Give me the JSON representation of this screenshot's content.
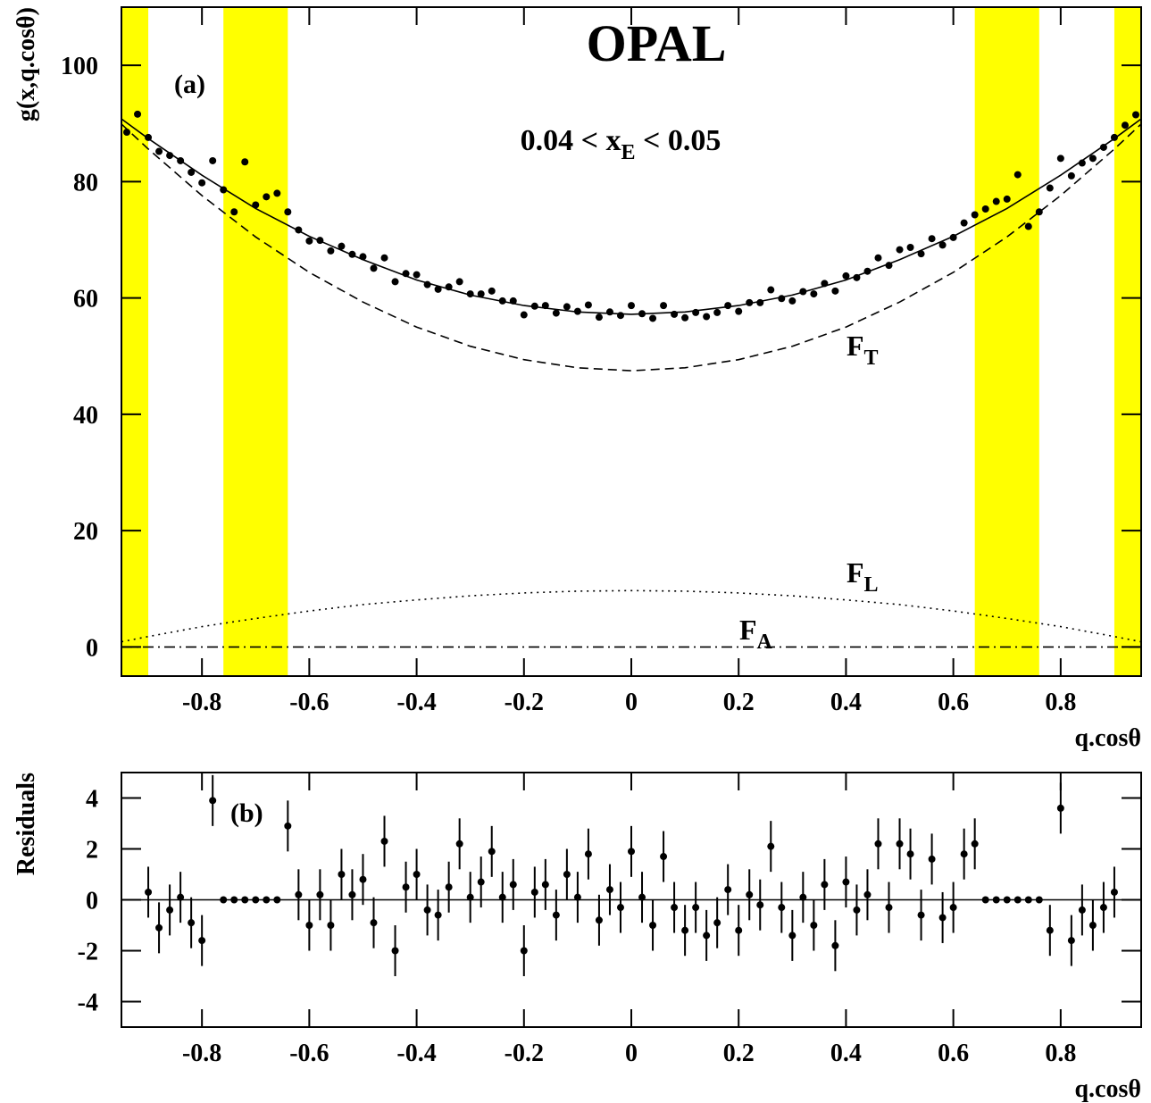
{
  "chart_data": [
    {
      "type": "scatter",
      "title": "OPAL",
      "panel_label": "(a)",
      "subtitle": {
        "text": "0.04 < x",
        "sub": "E",
        "tail": " < 0.05"
      },
      "xlabel": "q.cosθ",
      "ylabel": "g(x,q.cosθ)",
      "xlim": [
        -0.95,
        0.95
      ],
      "ylim": [
        -5,
        110
      ],
      "xticks": [
        -0.8,
        -0.6,
        -0.4,
        -0.2,
        0,
        0.2,
        0.4,
        0.6,
        0.8
      ],
      "yticks": [
        0,
        20,
        40,
        60,
        80,
        100
      ],
      "band_color": "#ffff00",
      "bands": [
        [
          -0.95,
          -0.9
        ],
        [
          -0.76,
          -0.64
        ],
        [
          0.64,
          0.76
        ],
        [
          0.9,
          0.95
        ]
      ],
      "color": "#000000",
      "x": [
        -0.94,
        -0.92,
        -0.9,
        -0.88,
        -0.86,
        -0.84,
        -0.82,
        -0.8,
        -0.78,
        -0.76,
        -0.74,
        -0.72,
        -0.7,
        -0.68,
        -0.66,
        -0.64,
        -0.62,
        -0.6,
        -0.58,
        -0.56,
        -0.54,
        -0.52,
        -0.5,
        -0.48,
        -0.46,
        -0.44,
        -0.42,
        -0.4,
        -0.38,
        -0.36,
        -0.34,
        -0.32,
        -0.3,
        -0.28,
        -0.26,
        -0.24,
        -0.22,
        -0.2,
        -0.18,
        -0.16,
        -0.14,
        -0.12,
        -0.1,
        -0.08,
        -0.06,
        -0.04,
        -0.02,
        0,
        0.02,
        0.04,
        0.06,
        0.08,
        0.1,
        0.12,
        0.14,
        0.16,
        0.18,
        0.2,
        0.22,
        0.24,
        0.26,
        0.28,
        0.3,
        0.32,
        0.34,
        0.36,
        0.38,
        0.4,
        0.42,
        0.44,
        0.46,
        0.48,
        0.5,
        0.52,
        0.54,
        0.56,
        0.58,
        0.6,
        0.62,
        0.64,
        0.66,
        0.68,
        0.7,
        0.72,
        0.74,
        0.76,
        0.78,
        0.8,
        0.82,
        0.84,
        0.86,
        0.88,
        0.9,
        0.92,
        0.94
      ],
      "values": [
        88.5,
        91.6,
        87.6,
        85.2,
        84.5,
        83.6,
        81.6,
        79.8,
        83.6,
        78.6,
        74.8,
        83.4,
        76.0,
        77.4,
        78.0,
        74.8,
        71.7,
        69.8,
        69.9,
        68.1,
        68.9,
        67.5,
        67.1,
        65.1,
        66.9,
        62.8,
        64.2,
        64.0,
        62.3,
        61.5,
        61.9,
        62.8,
        60.7,
        60.7,
        61.2,
        59.5,
        59.5,
        57.1,
        58.6,
        58.7,
        57.4,
        58.5,
        57.7,
        58.8,
        56.7,
        57.6,
        57.0,
        58.7,
        57.3,
        56.5,
        58.7,
        57.2,
        56.6,
        57.5,
        56.8,
        57.5,
        58.7,
        57.7,
        59.2,
        59.2,
        61.4,
        59.9,
        59.5,
        61.1,
        60.7,
        62.5,
        61.2,
        63.8,
        63.5,
        64.6,
        66.9,
        65.6,
        68.3,
        68.7,
        67.6,
        70.2,
        69.1,
        70.4,
        72.9,
        74.3,
        75.3,
        76.6,
        77.0,
        81.2,
        72.3,
        74.8,
        78.9,
        84.0,
        81.0,
        83.2,
        84.0,
        85.9,
        87.6,
        89.7,
        91.5
      ],
      "curve_x": [
        -0.95,
        -0.9,
        -0.8,
        -0.7,
        -0.6,
        -0.5,
        -0.4,
        -0.3,
        -0.2,
        -0.1,
        0,
        0.1,
        0.2,
        0.3,
        0.4,
        0.5,
        0.6,
        0.7,
        0.8,
        0.9,
        0.95
      ],
      "curves": [
        {
          "style": "solid",
          "values": [
            90.8,
            87.4,
            81.1,
            75.4,
            70.6,
            66.6,
            63.1,
            60.5,
            58.7,
            57.6,
            57.2,
            57.6,
            58.7,
            60.5,
            63.1,
            66.6,
            70.6,
            75.4,
            81.1,
            87.4,
            90.8
          ]
        },
        {
          "style": "dashed",
          "label": {
            "text": "F",
            "sub": "T"
          },
          "values": [
            89.9,
            85.6,
            77.6,
            70.5,
            64.4,
            59.3,
            55.0,
            51.7,
            49.4,
            48.0,
            47.5,
            48.0,
            49.4,
            51.7,
            55.0,
            59.3,
            64.4,
            70.5,
            77.6,
            85.6,
            89.9
          ]
        },
        {
          "style": "dotted",
          "label": {
            "text": "F",
            "sub": "L"
          },
          "values": [
            0.9,
            1.8,
            3.5,
            4.9,
            6.2,
            7.3,
            8.1,
            8.8,
            9.3,
            9.6,
            9.7,
            9.6,
            9.3,
            8.8,
            8.1,
            7.3,
            6.2,
            4.9,
            3.5,
            1.8,
            0.9
          ]
        },
        {
          "style": "dashdot",
          "label": {
            "text": "F",
            "sub": "A"
          },
          "values": [
            0,
            0,
            0,
            0,
            0,
            0,
            0,
            0,
            0,
            0,
            0,
            0,
            0,
            0,
            0,
            0,
            0,
            0,
            0,
            0,
            0
          ]
        }
      ]
    },
    {
      "type": "errorbar",
      "panel_label": "(b)",
      "xlabel": "q.cosθ",
      "ylabel": "Residuals",
      "xlim": [
        -0.95,
        0.95
      ],
      "ylim": [
        -5,
        5
      ],
      "xticks": [
        -0.8,
        -0.6,
        -0.4,
        -0.2,
        0,
        0.2,
        0.4,
        0.6,
        0.8
      ],
      "yticks": [
        -4,
        -2,
        0,
        2,
        4
      ],
      "reference_line": 0,
      "color": "#000000",
      "x": [
        -0.9,
        -0.88,
        -0.86,
        -0.84,
        -0.82,
        -0.8,
        -0.78,
        -0.76,
        -0.74,
        -0.72,
        -0.7,
        -0.68,
        -0.66,
        -0.64,
        -0.62,
        -0.6,
        -0.58,
        -0.56,
        -0.54,
        -0.52,
        -0.5,
        -0.48,
        -0.46,
        -0.44,
        -0.42,
        -0.4,
        -0.38,
        -0.36,
        -0.34,
        -0.32,
        -0.3,
        -0.28,
        -0.26,
        -0.24,
        -0.22,
        -0.2,
        -0.18,
        -0.16,
        -0.14,
        -0.12,
        -0.1,
        -0.08,
        -0.06,
        -0.04,
        -0.02,
        0,
        0.02,
        0.04,
        0.06,
        0.08,
        0.1,
        0.12,
        0.14,
        0.16,
        0.18,
        0.2,
        0.22,
        0.24,
        0.26,
        0.28,
        0.3,
        0.32,
        0.34,
        0.36,
        0.38,
        0.4,
        0.42,
        0.44,
        0.46,
        0.48,
        0.5,
        0.52,
        0.54,
        0.56,
        0.58,
        0.6,
        0.62,
        0.64,
        0.66,
        0.68,
        0.7,
        0.72,
        0.74,
        0.76,
        0.78,
        0.8,
        0.82,
        0.84,
        0.86,
        0.88,
        0.9
      ],
      "values": [
        0.3,
        -1.1,
        -0.4,
        0.1,
        -0.9,
        -1.6,
        3.9,
        0,
        0,
        0,
        0,
        0,
        0,
        2.9,
        0.2,
        -1.0,
        0.2,
        -1.0,
        1.0,
        0.2,
        0.8,
        -0.9,
        2.3,
        -2.0,
        0.5,
        1.0,
        -0.4,
        -0.6,
        0.5,
        2.2,
        0.1,
        0.7,
        1.9,
        0.1,
        0.6,
        -2.0,
        0.3,
        0.6,
        -0.6,
        1.0,
        0.1,
        1.8,
        -0.8,
        0.4,
        -0.3,
        1.9,
        0.1,
        -1.0,
        1.7,
        -0.3,
        -1.2,
        -0.3,
        -1.4,
        -0.9,
        0.4,
        -1.2,
        0.2,
        -0.2,
        2.1,
        -0.3,
        -1.4,
        0.1,
        -1.0,
        0.6,
        -1.8,
        0.7,
        -0.4,
        0.2,
        2.2,
        -0.3,
        2.2,
        1.8,
        -0.6,
        1.6,
        -0.7,
        -0.3,
        1.8,
        2.2,
        0,
        0,
        0,
        0,
        0,
        0,
        -1.2,
        3.6,
        -1.6,
        -0.4,
        -1.0,
        -0.3,
        0.3
      ],
      "errors": [
        1,
        1,
        1,
        1,
        1,
        1,
        1,
        0,
        0,
        0,
        0,
        0,
        0,
        1,
        1,
        1,
        1,
        1,
        1,
        1,
        1,
        1,
        1,
        1,
        1,
        1,
        1,
        1,
        1,
        1,
        1,
        1,
        1,
        1,
        1,
        1,
        1,
        1,
        1,
        1,
        1,
        1,
        1,
        1,
        1,
        1,
        1,
        1,
        1,
        1,
        1,
        1,
        1,
        1,
        1,
        1,
        1,
        1,
        1,
        1,
        1,
        1,
        1,
        1,
        1,
        1,
        1,
        1,
        1,
        1,
        1,
        1,
        1,
        1,
        1,
        1,
        1,
        1,
        0,
        0,
        0,
        0,
        0,
        0,
        1,
        1,
        1,
        1,
        1,
        1,
        1
      ]
    }
  ]
}
